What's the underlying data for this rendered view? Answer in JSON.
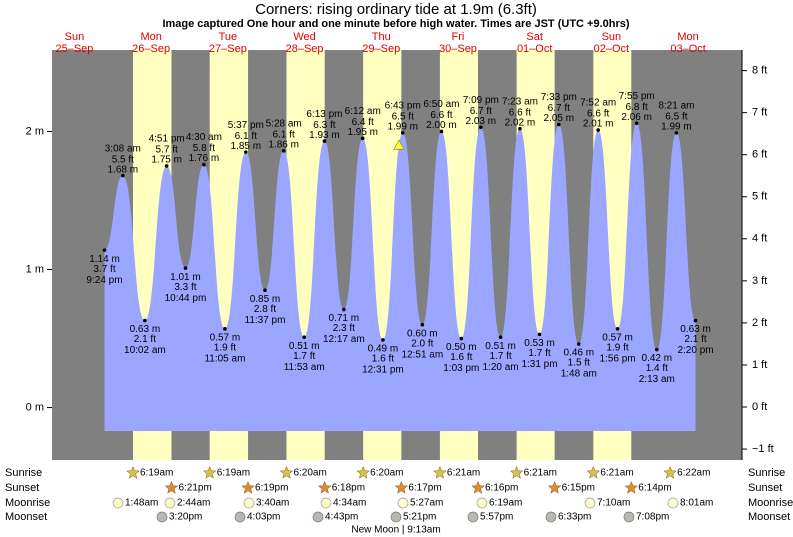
{
  "chart_data": {
    "type": "area",
    "title": "Corners: rising  ordinary tide at 1.9m (6.3ft)",
    "subtitle": "Image captured One hour and one minute before high water. Times are JST (UTC +9.0hrs)",
    "categories": [
      {
        "name": "Sun",
        "date": "25–Sep"
      },
      {
        "name": "Mon",
        "date": "26–Sep"
      },
      {
        "name": "Tue",
        "date": "27–Sep"
      },
      {
        "name": "Wed",
        "date": "28–Sep"
      },
      {
        "name": "Thu",
        "date": "29–Sep"
      },
      {
        "name": "Fri",
        "date": "30–Sep"
      },
      {
        "name": "Sat",
        "date": "01–Oct"
      },
      {
        "name": "Sun",
        "date": "02–Oct"
      },
      {
        "name": "Mon",
        "date": "03–Oct"
      }
    ],
    "extremes": {
      "date": [
        "25–Sep",
        "26–Sep",
        "26–Sep",
        "26–Sep",
        "26–Sep",
        "27–Sep",
        "27–Sep",
        "27–Sep",
        "27–Sep",
        "28–Sep",
        "28–Sep",
        "28–Sep",
        "29–Sep",
        "29–Sep",
        "29–Sep",
        "29–Sep",
        "30–Sep",
        "30–Sep",
        "30–Sep",
        "30–Sep",
        "01–Oct",
        "01–Oct",
        "01–Oct",
        "01–Oct",
        "02–Oct",
        "02–Oct",
        "02–Oct",
        "02–Oct",
        "03–Oct",
        "03–Oct",
        "03–Oct"
      ],
      "time": [
        "9:24 pm",
        "3:08 am",
        "10:02 am",
        "4:51 pm",
        "10:44 pm",
        "4:30 am",
        "11:05 am",
        "5:37 pm",
        "11:37 pm",
        "5:28 am",
        "11:53 am",
        "6:13 pm",
        "12:17 am",
        "6:12 am",
        "12:31 pm",
        "6:43 pm",
        "12:51 am",
        "6:50 am",
        "1:03 pm",
        "7:09 pm",
        "1:20 am",
        "7:23 am",
        "1:31 pm",
        "7:33 pm",
        "1:48 am",
        "7:52 am",
        "1:56 pm",
        "7:55 pm",
        "2:13 am",
        "8:21 am",
        "2:20 pm"
      ],
      "values": [
        1.14,
        1.68,
        0.63,
        1.75,
        1.01,
        1.76,
        0.57,
        1.85,
        0.85,
        1.86,
        0.51,
        1.93,
        0.71,
        1.95,
        0.49,
        1.99,
        0.6,
        2.0,
        0.5,
        2.03,
        0.51,
        2.02,
        0.53,
        2.05,
        0.46,
        2.01,
        0.57,
        2.06,
        0.42,
        1.99,
        0.63
      ],
      "value_labels": [
        "1.14 m",
        "1.68 m",
        "0.63 m",
        "1.75 m",
        "1.01 m",
        "1.76 m",
        "0.57 m",
        "1.85 m",
        "0.85 m",
        "1.86 m",
        "0.51 m",
        "1.93 m",
        "0.71 m",
        "1.95 m",
        "0.49 m",
        "1.99 m",
        "0.60 m",
        "2.00 m",
        "0.50 m",
        "2.03 m",
        "0.51 m",
        "2.02 m",
        "0.53 m",
        "2.05 m",
        "0.46 m",
        "2.01 m",
        "0.57 m",
        "2.06 m",
        "0.42 m",
        "1.99 m",
        "0.63 m"
      ],
      "ft_labels": [
        "3.7 ft",
        "5.5 ft",
        "2.1 ft",
        "5.7 ft",
        "3.3 ft",
        "5.8 ft",
        "1.9 ft",
        "6.1 ft",
        "2.8 ft",
        "6.1 ft",
        "1.7 ft",
        "6.3 ft",
        "2.3 ft",
        "6.4 ft",
        "1.6 ft",
        "6.5 ft",
        "2.0 ft",
        "6.6 ft",
        "1.6 ft",
        "6.7 ft",
        "1.7 ft",
        "6.6 ft",
        "1.7 ft",
        "6.7 ft",
        "1.5 ft",
        "6.6 ft",
        "1.9 ft",
        "6.8 ft",
        "1.4 ft",
        "6.5 ft",
        "2.1 ft"
      ]
    },
    "current_level": 1.9,
    "fill_color": "#9aa6ff",
    "ylim": [
      -0.38,
      2.59
    ],
    "yticks": [
      {
        "value": 0,
        "label": "0 m"
      },
      {
        "value": 1,
        "label": "1 m"
      },
      {
        "value": 2,
        "label": "2 m"
      }
    ],
    "y2lim": [
      -1.26,
      8.49
    ],
    "y2ticks": [
      {
        "value": -1,
        "label": "−1 ft"
      },
      {
        "value": 0,
        "label": "0 ft"
      },
      {
        "value": 1,
        "label": "1 ft"
      },
      {
        "value": 2,
        "label": "2 ft"
      },
      {
        "value": 3,
        "label": "3 ft"
      },
      {
        "value": 4,
        "label": "4 ft"
      },
      {
        "value": 5,
        "label": "5 ft"
      },
      {
        "value": 6,
        "label": "6 ft"
      },
      {
        "value": 7,
        "label": "7 ft"
      },
      {
        "value": 8,
        "label": "8 ft"
      }
    ],
    "row_labels": {
      "sunrise": "Sunrise",
      "sunset": "Sunset",
      "moonrise": "Moonrise",
      "moonset": "Moonset"
    },
    "sunrise": [
      "6:19am",
      "6:19am",
      "6:20am",
      "6:20am",
      "6:21am",
      "6:21am",
      "6:21am",
      "6:22am"
    ],
    "sunset": [
      "6:21pm",
      "6:19pm",
      "6:18pm",
      "6:17pm",
      "6:16pm",
      "6:15pm",
      "6:14pm"
    ],
    "moonrise": [
      "1:48am",
      "2:44am",
      "3:40am",
      "4:34am",
      "5:27am",
      "6:19am",
      "7:10am",
      "8:01am"
    ],
    "moonset": [
      "3:20pm",
      "4:03pm",
      "4:43pm",
      "5:21pm",
      "5:57pm",
      "6:33pm",
      "7:08pm"
    ],
    "moon_phase": "New Moon | 9:13am"
  }
}
